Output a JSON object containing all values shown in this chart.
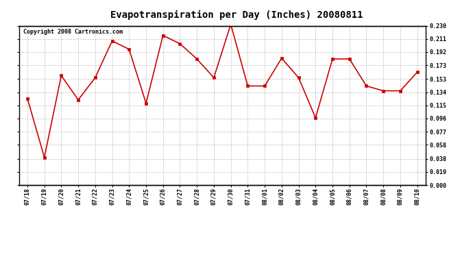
{
  "title": "Evapotranspiration per Day (Inches) 20080811",
  "copyright_text": "Copyright 2008 Cartronics.com",
  "x_labels": [
    "07/18",
    "07/19",
    "07/20",
    "07/21",
    "07/22",
    "07/23",
    "07/24",
    "07/25",
    "07/26",
    "07/27",
    "07/28",
    "07/29",
    "07/30",
    "07/31",
    "08/01",
    "08/02",
    "08/03",
    "08/04",
    "08/05",
    "08/06",
    "08/07",
    "08/08",
    "08/09",
    "08/10"
  ],
  "y_values": [
    0.125,
    0.04,
    0.158,
    0.123,
    0.155,
    0.208,
    0.196,
    0.118,
    0.216,
    0.204,
    0.182,
    0.155,
    0.232,
    0.143,
    0.143,
    0.183,
    0.155,
    0.097,
    0.182,
    0.182,
    0.143,
    0.136,
    0.136,
    0.163
  ],
  "line_color": "#cc0000",
  "marker_color": "#cc0000",
  "bg_color": "#ffffff",
  "grid_color": "#bbbbbb",
  "ylim": [
    0.0,
    0.23
  ],
  "yticks": [
    0.0,
    0.019,
    0.038,
    0.058,
    0.077,
    0.096,
    0.115,
    0.134,
    0.153,
    0.173,
    0.192,
    0.211,
    0.23
  ],
  "title_fontsize": 10,
  "tick_fontsize": 6,
  "copyright_fontsize": 6
}
